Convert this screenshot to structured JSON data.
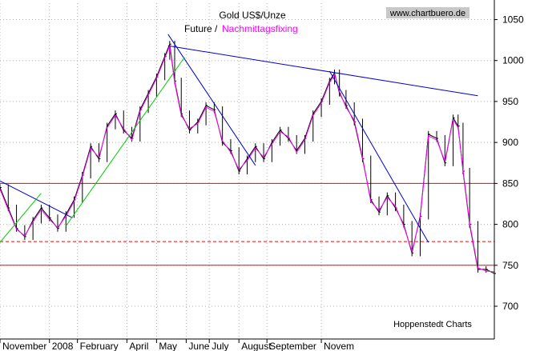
{
  "chart_data": {
    "type": "line",
    "title": "Gold US$/Unze",
    "subtitle_future": "Future /",
    "subtitle_fixing": "Nachmittagsfixing",
    "watermark": "www.chartbuero.de",
    "source": "Hoppenstedt Charts",
    "x_labels": [
      "November",
      "2008",
      "February",
      "April",
      "May",
      "June",
      "July",
      "August",
      "September",
      "Novem"
    ],
    "y_ticks": [
      700,
      750,
      800,
      850,
      900,
      950,
      1000,
      1050
    ],
    "ylim": [
      660,
      1070
    ],
    "xlim": [
      0,
      300
    ],
    "grid": true,
    "colors": {
      "future_bars": "#000000",
      "fixing_line": "#ff00ff",
      "support_lines": "#ff0000",
      "downtrend_lines": "#0000cc",
      "uptrend_line": "#00cc00",
      "grid": "#b0b0b0"
    },
    "horizontal_lines": [
      {
        "value": 850,
        "style": "solid"
      },
      {
        "value": 779,
        "style": "dashed"
      },
      {
        "value": 750,
        "style": "solid"
      }
    ],
    "trend_lines": [
      {
        "color": "downtrend",
        "from": [
          0,
          853
        ],
        "to": [
          44,
          808
        ]
      },
      {
        "color": "downtrend",
        "from": [
          102,
          1032
        ],
        "to": [
          155,
          872
        ]
      },
      {
        "color": "downtrend",
        "from": [
          102,
          1018
        ],
        "to": [
          290,
          957
        ]
      },
      {
        "color": "downtrend",
        "from": [
          200,
          987
        ],
        "to": [
          260,
          778
        ]
      },
      {
        "color": "uptrend",
        "from": [
          0,
          778
        ],
        "to": [
          25,
          838
        ]
      },
      {
        "color": "uptrend",
        "from": [
          40,
          798
        ],
        "to": [
          112,
          1004
        ]
      }
    ],
    "series": [
      {
        "name": "Future",
        "values": [
          [
            0,
            845
          ],
          [
            5,
            820
          ],
          [
            10,
            795
          ],
          [
            15,
            785
          ],
          [
            20,
            805
          ],
          [
            25,
            820
          ],
          [
            30,
            808
          ],
          [
            35,
            795
          ],
          [
            40,
            812
          ],
          [
            45,
            830
          ],
          [
            50,
            860
          ],
          [
            55,
            895
          ],
          [
            60,
            880
          ],
          [
            65,
            920
          ],
          [
            70,
            935
          ],
          [
            75,
            915
          ],
          [
            80,
            905
          ],
          [
            85,
            940
          ],
          [
            90,
            960
          ],
          [
            95,
            980
          ],
          [
            100,
            1005
          ],
          [
            103,
            1020
          ],
          [
            106,
            975
          ],
          [
            110,
            935
          ],
          [
            115,
            915
          ],
          [
            120,
            925
          ],
          [
            125,
            945
          ],
          [
            130,
            940
          ],
          [
            135,
            900
          ],
          [
            140,
            890
          ],
          [
            145,
            865
          ],
          [
            150,
            880
          ],
          [
            155,
            895
          ],
          [
            160,
            880
          ],
          [
            165,
            900
          ],
          [
            170,
            915
          ],
          [
            175,
            905
          ],
          [
            180,
            890
          ],
          [
            185,
            905
          ],
          [
            190,
            935
          ],
          [
            195,
            950
          ],
          [
            200,
            975
          ],
          [
            203,
            985
          ],
          [
            206,
            960
          ],
          [
            210,
            945
          ],
          [
            215,
            925
          ],
          [
            220,
            880
          ],
          [
            225,
            830
          ],
          [
            230,
            815
          ],
          [
            235,
            835
          ],
          [
            240,
            820
          ],
          [
            245,
            800
          ],
          [
            250,
            765
          ],
          [
            255,
            810
          ],
          [
            260,
            910
          ],
          [
            265,
            905
          ],
          [
            270,
            875
          ],
          [
            275,
            930
          ],
          [
            278,
            920
          ],
          [
            281,
            865
          ],
          [
            285,
            800
          ],
          [
            290,
            745
          ],
          [
            295,
            745
          ],
          [
            300,
            740
          ]
        ]
      },
      {
        "name": "Nachmittagsfixing",
        "values": [
          [
            0,
            843
          ],
          [
            5,
            818
          ],
          [
            10,
            794
          ],
          [
            15,
            786
          ],
          [
            20,
            803
          ],
          [
            25,
            818
          ],
          [
            30,
            806
          ],
          [
            35,
            796
          ],
          [
            40,
            810
          ],
          [
            45,
            828
          ],
          [
            50,
            858
          ],
          [
            55,
            893
          ],
          [
            60,
            882
          ],
          [
            65,
            918
          ],
          [
            70,
            933
          ],
          [
            75,
            917
          ],
          [
            80,
            903
          ],
          [
            85,
            938
          ],
          [
            90,
            958
          ],
          [
            95,
            978
          ],
          [
            100,
            1003
          ],
          [
            103,
            1018
          ],
          [
            106,
            973
          ],
          [
            110,
            933
          ],
          [
            115,
            917
          ],
          [
            120,
            923
          ],
          [
            125,
            943
          ],
          [
            130,
            938
          ],
          [
            135,
            902
          ],
          [
            140,
            888
          ],
          [
            145,
            867
          ],
          [
            150,
            878
          ],
          [
            155,
            893
          ],
          [
            160,
            882
          ],
          [
            165,
            898
          ],
          [
            170,
            913
          ],
          [
            175,
            907
          ],
          [
            180,
            888
          ],
          [
            185,
            903
          ],
          [
            190,
            933
          ],
          [
            195,
            948
          ],
          [
            200,
            973
          ],
          [
            203,
            983
          ],
          [
            206,
            962
          ],
          [
            210,
            943
          ],
          [
            215,
            927
          ],
          [
            220,
            882
          ],
          [
            225,
            828
          ],
          [
            230,
            817
          ],
          [
            235,
            833
          ],
          [
            240,
            822
          ],
          [
            245,
            798
          ],
          [
            250,
            767
          ],
          [
            255,
            808
          ],
          [
            260,
            908
          ],
          [
            265,
            903
          ],
          [
            270,
            877
          ],
          [
            275,
            928
          ],
          [
            278,
            918
          ],
          [
            281,
            867
          ],
          [
            285,
            802
          ],
          [
            290,
            747
          ],
          [
            295,
            743
          ],
          [
            300,
            742
          ]
        ]
      }
    ]
  }
}
